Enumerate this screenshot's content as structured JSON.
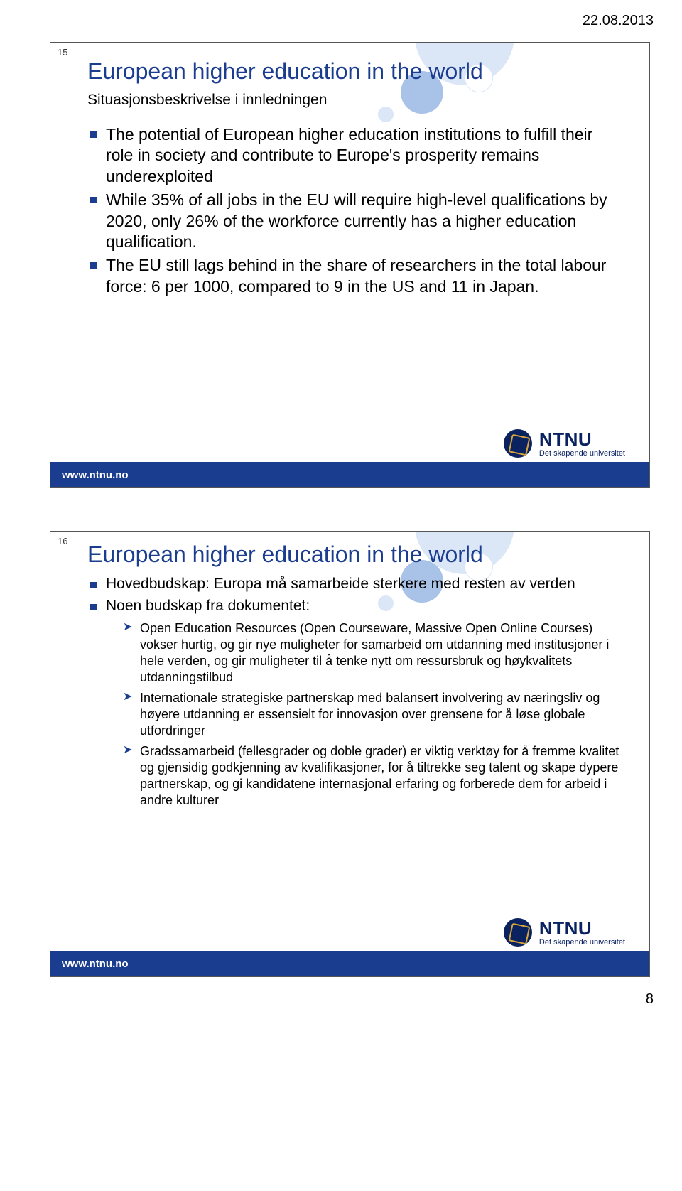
{
  "header_date": "22.08.2013",
  "page_number": "8",
  "colors": {
    "title": "#1a3d8f",
    "bullet_square": "#1a3d8f",
    "sub_arrow": "#1a3d8f",
    "footer_bg": "#1a3d8f",
    "ntnu_blue": "#0a2260",
    "ntnu_gold": "#d9a53a",
    "bubble_light": "#dbe6f7",
    "bubble_mid": "#a9c2e8",
    "bubble_white": "#ffffff"
  },
  "slide1": {
    "number": "15",
    "title": "European higher education in the world",
    "subtitle": "Situasjonsbeskrivelse i innledningen",
    "bullets": [
      "The potential of European higher education institutions to fulfill their role in society and contribute to Europe's prosperity remains underexploited",
      "While 35% of all jobs in the EU will require high-level qualifications by 2020, only 26% of the workforce currently has a higher education qualification.",
      "The EU still lags behind in the share of researchers in the total labour force: 6 per 1000, compared to 9 in the US and 11 in Japan."
    ],
    "footer": "www.ntnu.no",
    "logo_main": "NTNU",
    "logo_sub": "Det skapende universitet"
  },
  "slide2": {
    "number": "16",
    "title": "European higher education in the world",
    "bullets": [
      {
        "text": "Hovedbudskap: Europa må samarbeide sterkere med resten av verden",
        "sub": []
      },
      {
        "text": "Noen budskap fra dokumentet:",
        "sub": [
          "Open Education Resources (Open Courseware, Massive Open Online Courses) vokser hurtig, og gir nye muligheter for samarbeid om utdanning med institusjoner i hele verden, og gir muligheter til å tenke nytt om ressursbruk og høykvalitets utdanningstilbud",
          "Internationale strategiske partnerskap med balansert involvering av næringsliv og høyere utdanning er essensielt for innovasjon over grensene for å løse globale utfordringer",
          "Gradssamarbeid (fellesgrader og doble grader) er viktig verktøy for å fremme kvalitet og gjensidig godkjenning av kvalifikasjoner, for å tiltrekke seg talent og skape dypere partnerskap, og gi kandidatene internasjonal erfaring og forberede dem for arbeid i andre kulturer"
        ]
      }
    ],
    "footer": "www.ntnu.no",
    "logo_main": "NTNU",
    "logo_sub": "Det skapende universitet"
  }
}
